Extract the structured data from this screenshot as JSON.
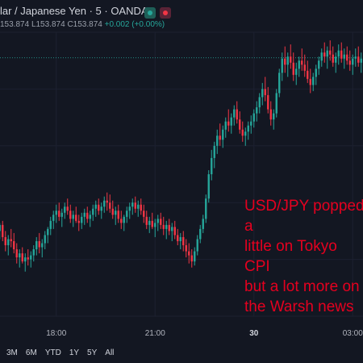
{
  "header": {
    "title": "lar / Japanese Yen · 5 · OANDA",
    "ohlc_lead": "153.874",
    "low_label": "L",
    "low_value": "153.874",
    "close_label": "C",
    "close_value": "153.874",
    "change": "+0.002 (+0.00%)",
    "status_colors": {
      "market": "#26a69a",
      "alert": "#f23645"
    }
  },
  "annotation": {
    "text": "USD/JPY popped a\nlittle on Tokyo CPI\nbut a lot more on\nthe Warsh news",
    "color": "#e5001f"
  },
  "ranges": [
    "3M",
    "6M",
    "YTD",
    "1Y",
    "5Y",
    "All"
  ],
  "chart_data": {
    "type": "candlestick",
    "title": "",
    "up_color": "#26a69a",
    "down_color": "#f23645",
    "x_ticks": [
      {
        "label": "18:00",
        "index": 20,
        "bold": false
      },
      {
        "label": "21:00",
        "index": 55,
        "bold": false
      },
      {
        "label": "30",
        "index": 90,
        "bold": true
      },
      {
        "label": "03:00",
        "index": 125,
        "bold": false
      }
    ],
    "ylim": [
      152.6,
      154.0
    ],
    "price_line": 153.874,
    "candles": [
      [
        153.02,
        153.06,
        152.98,
        153.05
      ],
      [
        153.05,
        153.07,
        152.97,
        152.99
      ],
      [
        152.99,
        153.02,
        152.92,
        152.95
      ],
      [
        152.95,
        153.0,
        152.9,
        152.98
      ],
      [
        152.98,
        153.03,
        152.94,
        152.97
      ],
      [
        152.97,
        153.01,
        152.91,
        152.93
      ],
      [
        152.93,
        152.96,
        152.86,
        152.89
      ],
      [
        152.89,
        152.93,
        152.84,
        152.91
      ],
      [
        152.91,
        152.94,
        152.86,
        152.87
      ],
      [
        152.87,
        152.91,
        152.82,
        152.89
      ],
      [
        152.89,
        152.93,
        152.85,
        152.88
      ],
      [
        152.88,
        152.92,
        152.84,
        152.9
      ],
      [
        152.9,
        152.95,
        152.87,
        152.93
      ],
      [
        152.93,
        152.99,
        152.9,
        152.97
      ],
      [
        152.97,
        153.01,
        152.91,
        152.94
      ],
      [
        152.94,
        152.98,
        152.89,
        152.96
      ],
      [
        152.96,
        153.02,
        152.93,
        153.0
      ],
      [
        153.0,
        153.04,
        152.96,
        153.03
      ],
      [
        153.03,
        153.09,
        153.0,
        153.07
      ],
      [
        153.07,
        153.12,
        153.03,
        153.1
      ],
      [
        153.1,
        153.15,
        153.06,
        153.12
      ],
      [
        153.12,
        153.16,
        153.07,
        153.09
      ],
      [
        153.09,
        153.13,
        153.04,
        153.11
      ],
      [
        153.11,
        153.16,
        153.08,
        153.14
      ],
      [
        153.14,
        153.18,
        153.1,
        153.12
      ],
      [
        153.12,
        153.15,
        153.06,
        153.08
      ],
      [
        153.08,
        153.12,
        153.04,
        153.1
      ],
      [
        153.1,
        153.14,
        153.06,
        153.07
      ],
      [
        153.07,
        153.1,
        153.02,
        153.06
      ],
      [
        153.06,
        153.11,
        153.03,
        153.09
      ],
      [
        153.09,
        153.13,
        153.05,
        153.11
      ],
      [
        153.11,
        153.14,
        153.06,
        153.08
      ],
      [
        153.08,
        153.12,
        153.04,
        153.1
      ],
      [
        153.1,
        153.15,
        153.07,
        153.13
      ],
      [
        153.13,
        153.17,
        153.09,
        153.15
      ],
      [
        153.15,
        153.18,
        153.1,
        153.12
      ],
      [
        153.12,
        153.16,
        153.08,
        153.14
      ],
      [
        153.14,
        153.19,
        153.11,
        153.17
      ],
      [
        153.17,
        153.21,
        153.12,
        153.16
      ],
      [
        153.16,
        153.2,
        153.11,
        153.13
      ],
      [
        153.13,
        153.17,
        153.08,
        153.1
      ],
      [
        153.1,
        153.14,
        153.05,
        153.12
      ],
      [
        153.12,
        153.15,
        153.06,
        153.08
      ],
      [
        153.08,
        153.12,
        153.03,
        153.06
      ],
      [
        153.06,
        153.1,
        153.02,
        153.09
      ],
      [
        153.09,
        153.14,
        153.06,
        153.12
      ],
      [
        153.12,
        153.16,
        153.08,
        153.14
      ],
      [
        153.14,
        153.18,
        153.1,
        153.16
      ],
      [
        153.16,
        153.19,
        153.11,
        153.13
      ],
      [
        153.13,
        153.17,
        153.09,
        153.15
      ],
      [
        153.15,
        153.18,
        153.1,
        153.12
      ],
      [
        153.12,
        153.15,
        153.06,
        153.09
      ],
      [
        153.09,
        153.12,
        153.03,
        153.05
      ],
      [
        153.05,
        153.09,
        153.01,
        153.07
      ],
      [
        153.07,
        153.11,
        153.03,
        153.04
      ],
      [
        153.04,
        153.08,
        152.99,
        153.06
      ],
      [
        153.06,
        153.1,
        153.02,
        153.08
      ],
      [
        153.08,
        153.11,
        153.03,
        153.05
      ],
      [
        153.05,
        153.09,
        153.0,
        153.03
      ],
      [
        153.03,
        153.07,
        152.98,
        153.05
      ],
      [
        153.05,
        153.08,
        153.0,
        153.02
      ],
      [
        153.02,
        153.06,
        152.97,
        153.04
      ],
      [
        153.04,
        153.07,
        152.98,
        153.0
      ],
      [
        153.0,
        153.03,
        152.95,
        152.97
      ],
      [
        152.97,
        153.01,
        152.93,
        152.99
      ],
      [
        152.99,
        153.02,
        152.92,
        152.95
      ],
      [
        152.95,
        152.98,
        152.89,
        152.92
      ],
      [
        152.92,
        152.96,
        152.86,
        152.9
      ],
      [
        152.9,
        152.93,
        152.84,
        152.87
      ],
      [
        152.87,
        152.94,
        152.85,
        152.92
      ],
      [
        152.92,
        153.0,
        152.9,
        152.98
      ],
      [
        152.98,
        153.05,
        152.96,
        153.03
      ],
      [
        153.03,
        153.1,
        153.01,
        153.08
      ],
      [
        153.08,
        153.2,
        153.06,
        153.18
      ],
      [
        153.18,
        153.32,
        153.16,
        153.3
      ],
      [
        153.3,
        153.42,
        153.27,
        153.38
      ],
      [
        153.38,
        153.46,
        153.33,
        153.44
      ],
      [
        153.44,
        153.52,
        153.4,
        153.49
      ],
      [
        153.49,
        153.55,
        153.44,
        153.47
      ],
      [
        153.47,
        153.54,
        153.43,
        153.52
      ],
      [
        153.52,
        153.58,
        153.48,
        153.56
      ],
      [
        153.56,
        153.62,
        153.51,
        153.54
      ],
      [
        153.54,
        153.6,
        153.5,
        153.58
      ],
      [
        153.58,
        153.64,
        153.54,
        153.62
      ],
      [
        153.62,
        153.66,
        153.55,
        153.57
      ],
      [
        153.57,
        153.61,
        153.5,
        153.52
      ],
      [
        153.52,
        153.56,
        153.46,
        153.49
      ],
      [
        153.49,
        153.53,
        153.44,
        153.51
      ],
      [
        153.51,
        153.56,
        153.47,
        153.54
      ],
      [
        153.54,
        153.59,
        153.5,
        153.56
      ],
      [
        153.56,
        153.62,
        153.53,
        153.6
      ],
      [
        153.6,
        153.66,
        153.56,
        153.63
      ],
      [
        153.63,
        153.7,
        153.6,
        153.68
      ],
      [
        153.68,
        153.75,
        153.64,
        153.72
      ],
      [
        153.72,
        153.78,
        153.66,
        153.69
      ],
      [
        153.69,
        153.73,
        153.6,
        153.62
      ],
      [
        153.62,
        153.66,
        153.54,
        153.57
      ],
      [
        153.57,
        153.62,
        153.52,
        153.6
      ],
      [
        153.6,
        153.72,
        153.58,
        153.7
      ],
      [
        153.7,
        153.82,
        153.68,
        153.8
      ],
      [
        153.8,
        153.9,
        153.76,
        153.87
      ],
      [
        153.87,
        153.93,
        153.8,
        153.84
      ],
      [
        153.84,
        153.9,
        153.78,
        153.88
      ],
      [
        153.88,
        153.94,
        153.82,
        153.85
      ],
      [
        153.85,
        153.9,
        153.76,
        153.79
      ],
      [
        153.79,
        153.85,
        153.74,
        153.82
      ],
      [
        153.82,
        153.88,
        153.78,
        153.86
      ],
      [
        153.86,
        153.92,
        153.81,
        153.84
      ],
      [
        153.84,
        153.89,
        153.78,
        153.81
      ],
      [
        153.81,
        153.86,
        153.75,
        153.77
      ],
      [
        153.77,
        153.82,
        153.7,
        153.74
      ],
      [
        153.74,
        153.8,
        153.71,
        153.78
      ],
      [
        153.78,
        153.84,
        153.74,
        153.82
      ],
      [
        153.82,
        153.88,
        153.79,
        153.86
      ],
      [
        153.86,
        153.92,
        153.83,
        153.9
      ],
      [
        153.9,
        153.95,
        153.85,
        153.88
      ],
      [
        153.88,
        153.93,
        153.82,
        153.91
      ],
      [
        153.91,
        153.96,
        153.86,
        153.89
      ],
      [
        153.89,
        153.93,
        153.83,
        153.85
      ],
      [
        153.85,
        153.9,
        153.8,
        153.88
      ],
      [
        153.88,
        153.94,
        153.84,
        153.91
      ],
      [
        153.91,
        153.95,
        153.85,
        153.87
      ],
      [
        153.87,
        153.92,
        153.82,
        153.89
      ],
      [
        153.89,
        153.93,
        153.84,
        153.86
      ],
      [
        153.86,
        153.91,
        153.81,
        153.84
      ],
      [
        153.84,
        153.89,
        153.79,
        153.87
      ],
      [
        153.87,
        153.92,
        153.83,
        153.88
      ],
      [
        153.88,
        153.93,
        153.83,
        153.85
      ],
      [
        153.85,
        153.9,
        153.8,
        153.87
      ],
      [
        153.87,
        153.91,
        153.82,
        153.874
      ]
    ]
  }
}
